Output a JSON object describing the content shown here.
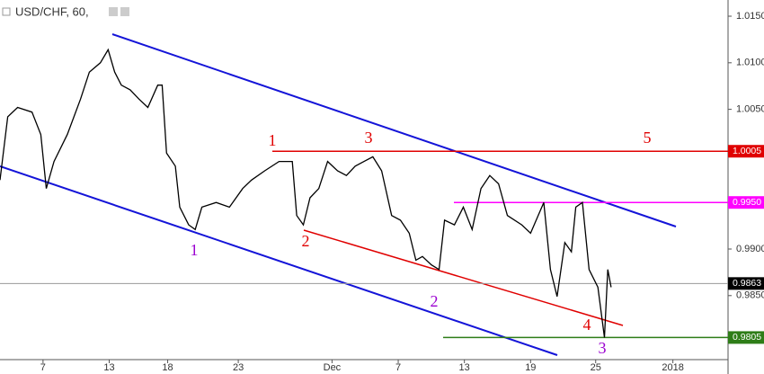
{
  "chart_data": {
    "type": "line",
    "title": "USD/CHF, 60,",
    "x": [
      0,
      0.7,
      1.6,
      2.9,
      3.7,
      4.2,
      4.9,
      6.1,
      7.3,
      8.1,
      9.1,
      9.8,
      10.4,
      11,
      11.8,
      12.6,
      13.4,
      14.3,
      14.7,
      15.1,
      15.9,
      16.3,
      17.1,
      17.7,
      18.3,
      19.6,
      20.8,
      22,
      22.8,
      24,
      25.3,
      26.5,
      26.9,
      27.5,
      28.1,
      28.9,
      29.7,
      30.6,
      31.4,
      32.2,
      33,
      33.8,
      34.6,
      35.5,
      36.3,
      37.1,
      37.7,
      38.3,
      39.1,
      39.8,
      40.3,
      41.2,
      42,
      42.8,
      43.6,
      44.4,
      45.2,
      46,
      47.3,
      48.1,
      49.3,
      49.9,
      50.5,
      51.2,
      51.8,
      52.2,
      52.8,
      53.4,
      54.2,
      54.8,
      55.1,
      55.4
    ],
    "series": [
      {
        "color": "#000000",
        "values": [
          0.9974,
          1.0042,
          1.0052,
          1.0047,
          1.0023,
          0.9965,
          0.9994,
          1.0023,
          1.0061,
          1.009,
          1.01,
          1.0114,
          1.009,
          1.0076,
          1.0071,
          1.0061,
          1.0052,
          1.0076,
          1.0076,
          1.0003,
          0.9989,
          0.9945,
          0.9926,
          0.9921,
          0.9945,
          0.995,
          0.9945,
          0.9965,
          0.9974,
          0.9984,
          0.9994,
          0.9994,
          0.9936,
          0.9926,
          0.9955,
          0.9965,
          0.9994,
          0.9984,
          0.9979,
          0.9989,
          0.9994,
          0.9999,
          0.9984,
          0.9936,
          0.9931,
          0.9917,
          0.9888,
          0.9892,
          0.9883,
          0.9878,
          0.9931,
          0.9926,
          0.9945,
          0.9921,
          0.9965,
          0.9979,
          0.997,
          0.9936,
          0.9926,
          0.9917,
          0.995,
          0.9878,
          0.9849,
          0.9907,
          0.9897,
          0.9945,
          0.995,
          0.9878,
          0.9859,
          0.9805,
          0.9878,
          0.9859
        ]
      }
    ],
    "xlim": [
      0,
      66
    ],
    "xticks": [
      {
        "value": 3.9,
        "label": "7"
      },
      {
        "value": 9.9,
        "label": "13"
      },
      {
        "value": 15.2,
        "label": "18"
      },
      {
        "value": 21.6,
        "label": "23"
      },
      {
        "value": 30.1,
        "label": "Dec"
      },
      {
        "value": 36.1,
        "label": "7"
      },
      {
        "value": 42.1,
        "label": "13"
      },
      {
        "value": 48.1,
        "label": "19"
      },
      {
        "value": 54.0,
        "label": "25"
      },
      {
        "value": 61.0,
        "label": "2018"
      }
    ],
    "ylim": [
      0.9775,
      1.017
    ],
    "yticks": [
      {
        "value": 1.015,
        "label": "1.0150"
      },
      {
        "value": 1.01,
        "label": "1.0100"
      },
      {
        "value": 1.005,
        "label": "1.0050"
      },
      {
        "value": 0.99,
        "label": "0.9900"
      },
      {
        "value": 0.985,
        "label": "0.9850"
      }
    ],
    "levels": [
      {
        "value": 1.0005,
        "label": "1.0005",
        "color": "#e00000"
      },
      {
        "value": 0.995,
        "label": "0.9950",
        "color": "#ff00ff"
      },
      {
        "value": 0.9863,
        "label": "0.9863",
        "color": "#000000"
      },
      {
        "value": 0.9805,
        "label": "0.9805",
        "color": "#2e7d18"
      }
    ],
    "wave_labels": [
      "1",
      "3",
      "5",
      "2",
      "4",
      "1",
      "2",
      "3"
    ]
  }
}
